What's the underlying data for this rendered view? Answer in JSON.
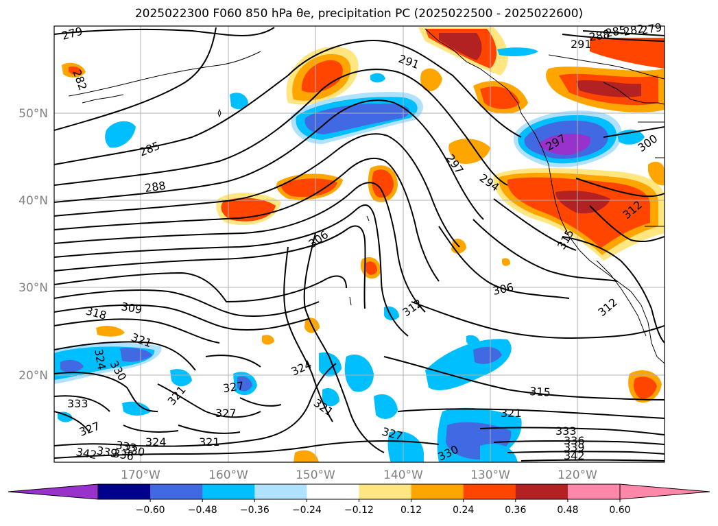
{
  "title": "2025022300 F060 850 hPa θe, precipitation PC (2025022500 - 2025022600)",
  "map": {
    "longitude_labels": [
      "170°W",
      "160°W",
      "150°W",
      "140°W",
      "130°W",
      "120°W"
    ],
    "latitude_labels": [
      "50°N",
      "40°N",
      "30°N",
      "20°N"
    ],
    "contour_labels": [
      "279",
      "282",
      "285",
      "288",
      "291",
      "288",
      "285",
      "282",
      "279",
      "291",
      "297",
      "294",
      "297",
      "300",
      "306",
      "306",
      "312",
      "312",
      "309",
      "318",
      "321",
      "324",
      "330",
      "333",
      "327",
      "321",
      "324",
      "327",
      "321",
      "324",
      "327",
      "321",
      "327",
      "330",
      "315",
      "321",
      "333",
      "336",
      "339",
      "342",
      "342",
      "339",
      "336",
      "333",
      "330",
      "312",
      "315"
    ]
  },
  "colorbar": {
    "labels": [
      "−0.60",
      "−0.48",
      "−0.36",
      "−0.24",
      "−0.12",
      "0.12",
      "0.24",
      "0.36",
      "0.48",
      "0.60"
    ],
    "colors": [
      "#9932CC",
      "#00008B",
      "#4169E1",
      "#00BFFF",
      "#B0E2FF",
      "#FFFFFF",
      "#FFE680",
      "#FFA500",
      "#FF4500",
      "#B22222",
      "#FF88AA",
      "#FF88AA"
    ],
    "extend_low_color": "#9932CC",
    "extend_high_color": "#FF88AA"
  }
}
